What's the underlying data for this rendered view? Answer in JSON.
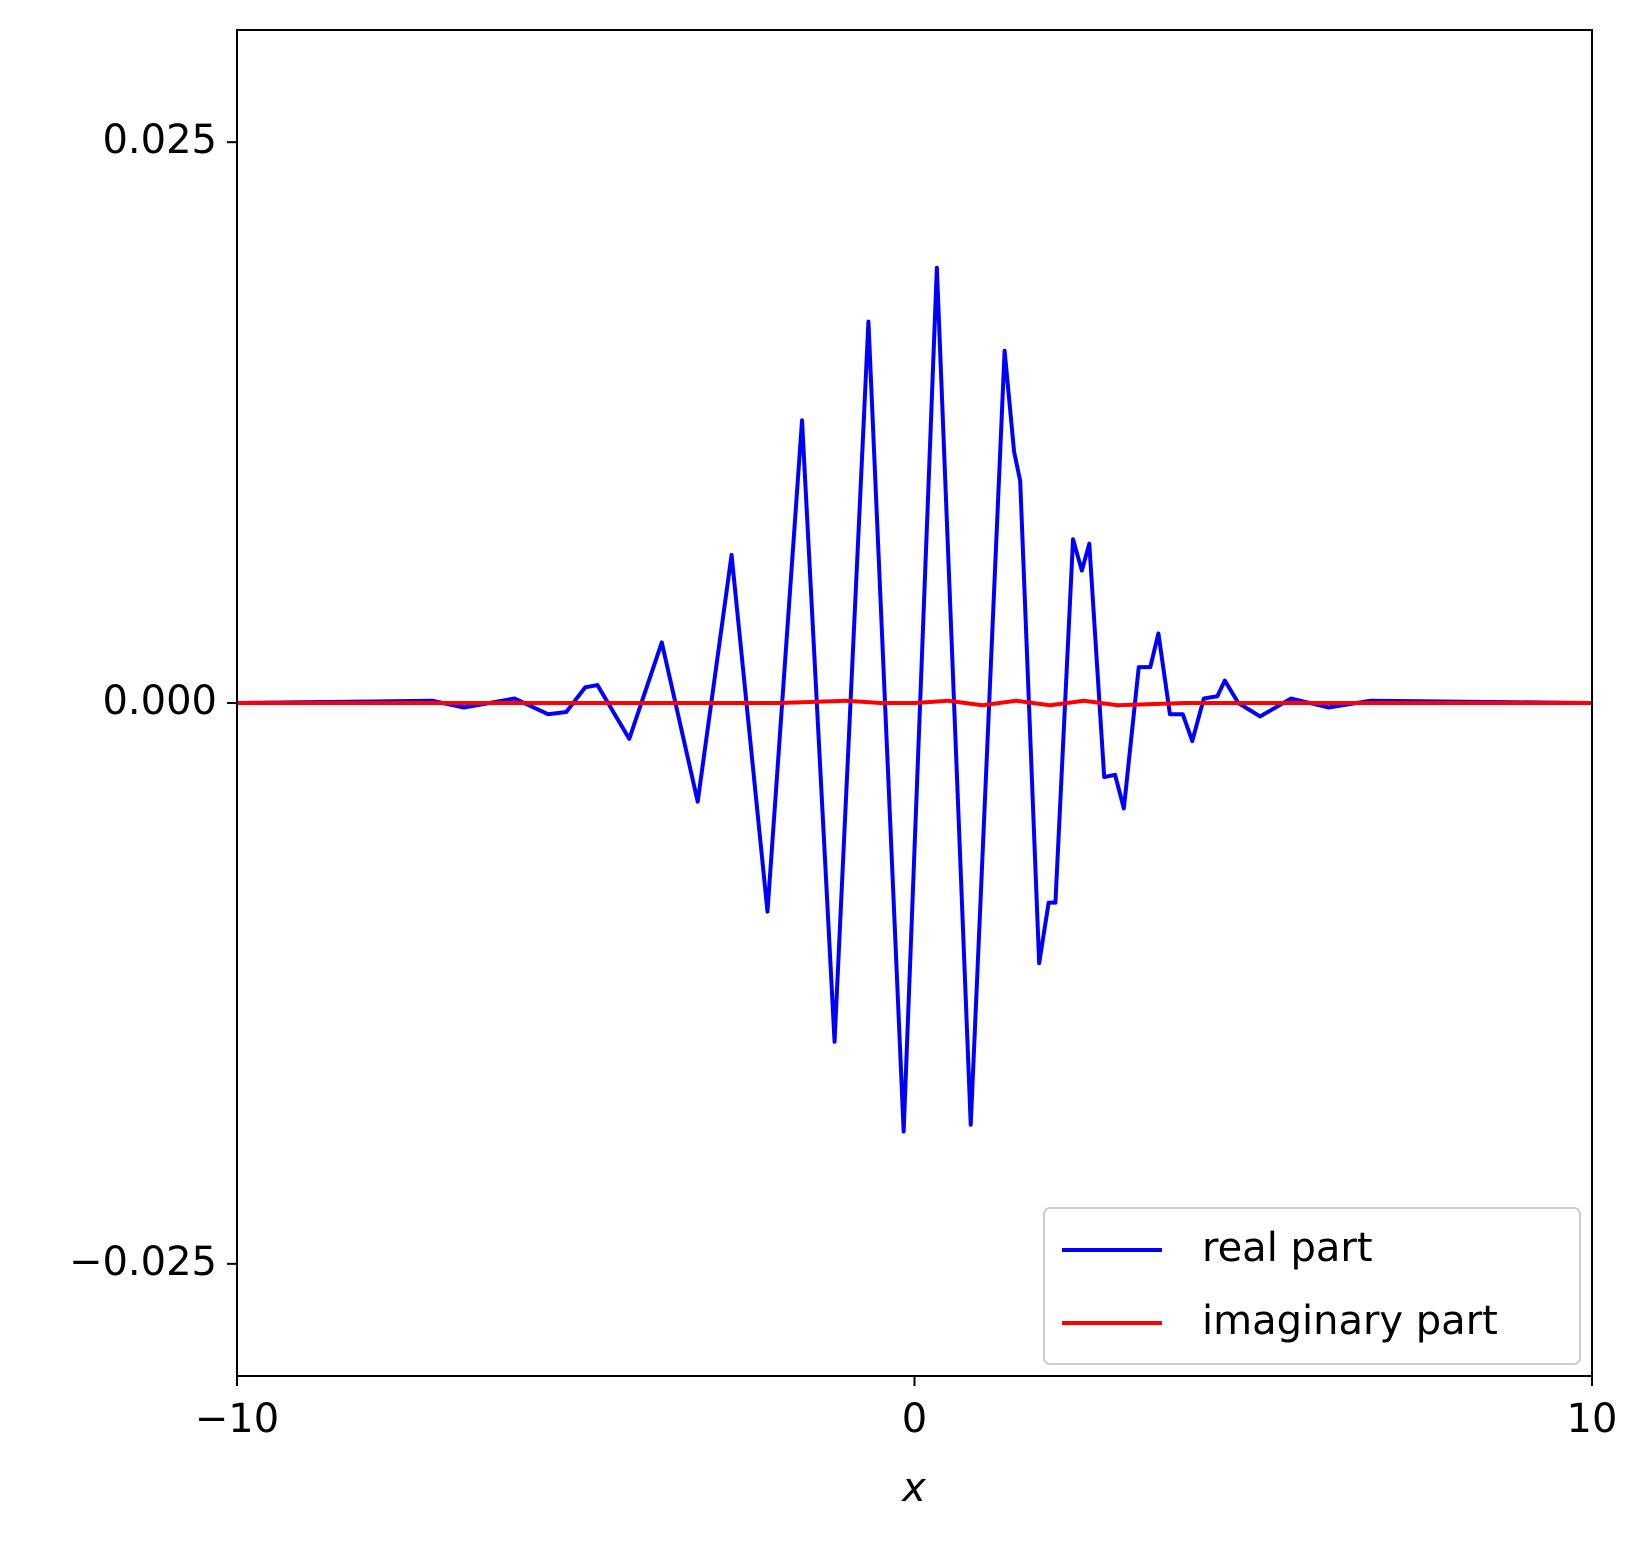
{
  "chart_data": {
    "type": "line",
    "xlabel": "x",
    "xlim": [
      -10,
      10
    ],
    "ylim": [
      -0.03,
      0.03
    ],
    "xticks": [
      {
        "value": -10,
        "label": "−10"
      },
      0,
      10
    ],
    "yticks": [
      {
        "value": -0.025,
        "label": "−0.025"
      },
      {
        "value": 0,
        "label": "0.000"
      },
      {
        "value": 0.025,
        "label": "0.025"
      }
    ],
    "legend": "lower right",
    "series": [
      {
        "name": "real part",
        "color": "#0000ff",
        "x": [
          -10,
          -7.12,
          -6.65,
          -5.9,
          -5.41,
          -5.14,
          -4.86,
          -4.68,
          -4.21,
          -3.73,
          -3.2,
          -2.7,
          -2.17,
          -1.66,
          -1.18,
          -0.68,
          -0.16,
          0.33,
          0.83,
          1.33,
          1.47,
          1.56,
          1.84,
          1.98,
          2.08,
          2.34,
          2.47,
          2.58,
          2.8,
          2.96,
          3.09,
          3.31,
          3.48,
          3.6,
          3.77,
          3.96,
          4.1,
          4.27,
          4.47,
          4.58,
          4.78,
          5.1,
          5.56,
          6.11,
          6.73,
          10
        ],
        "values": [
          0,
          0.0001,
          -0.0002,
          0.0002,
          -0.0005,
          -0.0004,
          0.0007,
          0.0008,
          -0.0016,
          0.0027,
          -0.0044,
          0.0066,
          -0.0093,
          0.0126,
          -0.0151,
          0.017,
          -0.0191,
          0.0194,
          -0.0188,
          0.0157,
          0.0112,
          0.0099,
          -0.0116,
          -0.0089,
          -0.0089,
          0.0073,
          0.0059,
          0.0071,
          -0.0033,
          -0.0032,
          -0.0047,
          0.0016,
          0.0016,
          0.0031,
          -0.0005,
          -0.0005,
          -0.0017,
          0.0002,
          0.0003,
          0.001,
          0,
          -0.0006,
          0.0002,
          -0.0002,
          0.0001,
          0
        ]
      },
      {
        "name": "imaginary part",
        "color": "#ff0000",
        "x": [
          -10,
          -5,
          -2,
          -1,
          -0.5,
          0,
          0.5,
          1,
          1.5,
          2,
          2.5,
          3,
          4,
          5,
          10
        ],
        "values": [
          0,
          0,
          0,
          0.0001,
          0,
          0,
          0.0001,
          -0.0001,
          0.0001,
          -0.0001,
          0.0001,
          -0.0001,
          0,
          0,
          0
        ]
      }
    ]
  }
}
